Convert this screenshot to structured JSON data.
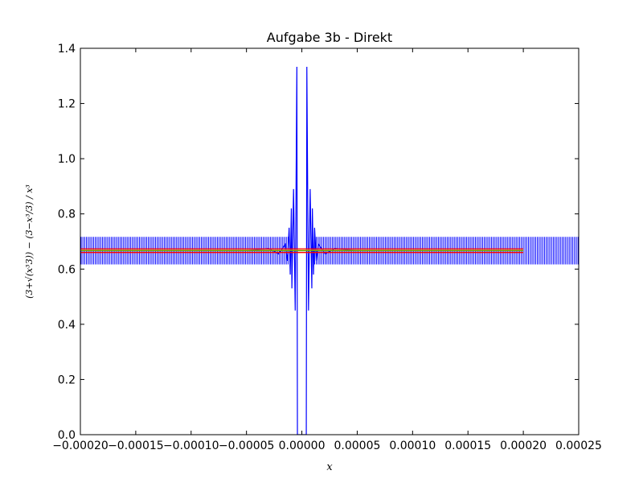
{
  "chart_data": {
    "type": "line",
    "title": "Aufgabe 3b - Direkt",
    "xlabel": "x",
    "ylabel": "(3+√(x³3)) − (3−x³/3) / x³",
    "xlim": [
      -0.0002,
      0.00025
    ],
    "ylim": [
      0.0,
      1.4
    ],
    "grid": false,
    "legend": "none",
    "x_ticks": [
      -0.0002,
      -0.00015,
      -0.0001,
      -5e-05,
      0.0,
      5e-05,
      0.0001,
      0.00015,
      0.0002,
      0.00025
    ],
    "x_tick_labels": [
      "−0.00020",
      "−0.00015",
      "−0.00010",
      "−0.00005",
      "0.00000",
      "0.00005",
      "0.00010",
      "0.00015",
      "0.00020",
      "0.00025"
    ],
    "y_ticks": [
      0.0,
      0.2,
      0.4,
      0.6,
      0.8,
      1.0,
      1.2,
      1.4
    ],
    "y_tick_labels": [
      "0.0",
      "0.2",
      "0.4",
      "0.6",
      "0.8",
      "1.0",
      "1.2",
      "1.4"
    ],
    "series": [
      {
        "color": "#0000ff",
        "baseline": 0.667,
        "x": [
          -0.0002,
          -5e-05,
          -3e-05,
          -2.1e-05,
          -1.5e-05,
          -1.3e-05,
          -1.15e-05,
          -1.05e-05,
          -9.5e-06,
          -9e-06,
          -7.5e-06,
          -6e-06,
          -4.5e-06,
          -4e-06,
          -3e-06,
          -2.5e-06,
          2.5e-06,
          3e-06,
          4e-06,
          4.5e-06,
          6e-06,
          7.5e-06,
          9e-06,
          9.5e-06,
          1.05e-05,
          1.15e-05,
          1.3e-05,
          1.5e-05,
          2.1e-05,
          3e-05,
          5e-05,
          0.0002
        ],
        "y": [
          0.667,
          0.667,
          0.675,
          0.655,
          0.69,
          0.63,
          0.75,
          0.58,
          0.82,
          0.53,
          0.89,
          0.45,
          1.333,
          0.0,
          0.0,
          0.0,
          0.0,
          0.0,
          0.0,
          1.333,
          0.45,
          0.89,
          0.53,
          0.82,
          0.58,
          0.75,
          0.63,
          0.69,
          0.655,
          0.675,
          0.667,
          0.667
        ]
      },
      {
        "color": "#ff0000",
        "x": [
          -0.0002,
          0.0002
        ],
        "y": [
          0.6733,
          0.6733
        ]
      },
      {
        "color": "#008000",
        "x": [
          -0.0002,
          0.0002
        ],
        "y": [
          0.6667,
          0.6667
        ]
      },
      {
        "color": "#ff0000",
        "x": [
          -0.0002,
          0.0002
        ],
        "y": [
          0.66,
          0.66
        ]
      },
      {
        "color": "#c8b400",
        "x": [
          -0.0002,
          0.0002
        ],
        "y": [
          0.6683,
          0.6683
        ]
      }
    ]
  }
}
